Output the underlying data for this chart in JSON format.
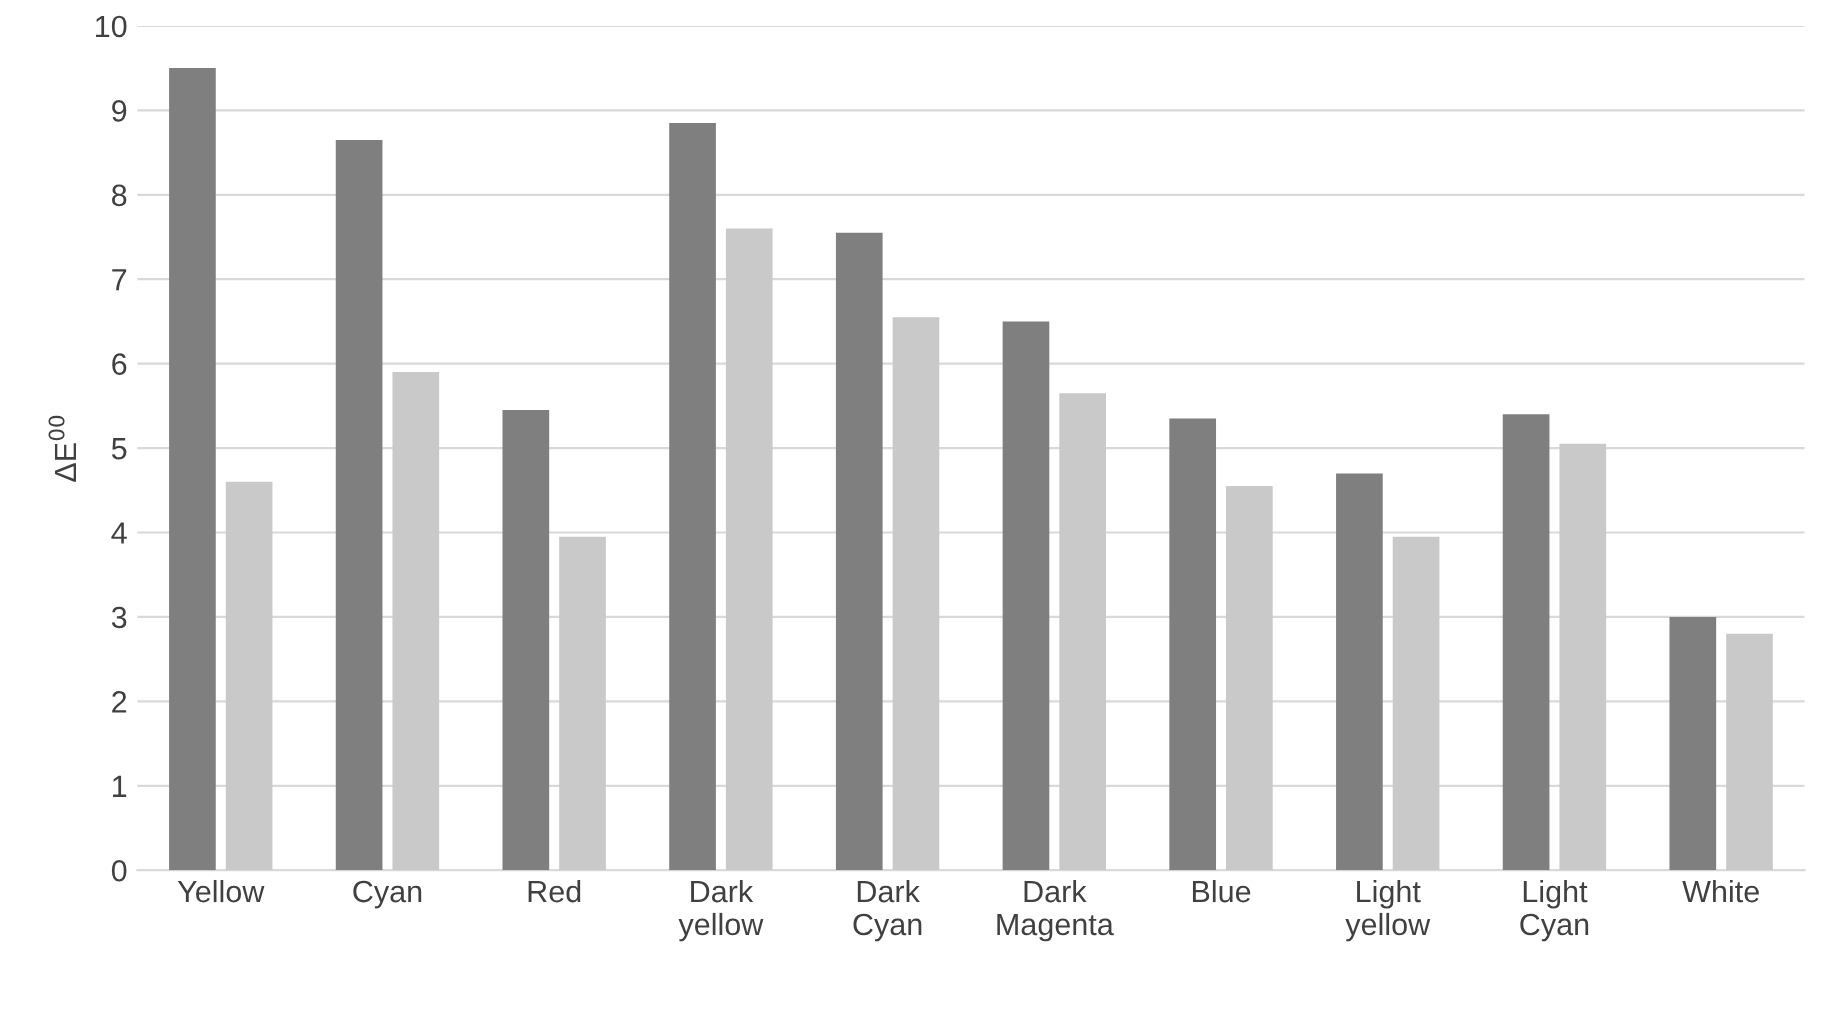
{
  "chart_data": {
    "type": "bar",
    "ylabel": "ΔE$^{00}$",
    "categories": [
      "Yellow",
      "Cyan",
      "Red",
      "Dark yellow",
      "Dark Cyan",
      "Dark Magenta",
      "Blue",
      "Light yellow",
      "Light Cyan",
      "White"
    ],
    "series": [
      {
        "color": "#7f7f7f",
        "values": [
          9.5,
          8.65,
          5.45,
          8.85,
          7.55,
          6.5,
          5.35,
          4.7,
          5.4,
          3.0
        ]
      },
      {
        "color": "#c9c9c9",
        "values": [
          4.6,
          5.9,
          3.95,
          7.6,
          6.55,
          5.65,
          4.55,
          3.95,
          5.05,
          2.8
        ]
      }
    ],
    "ylim": [
      0,
      10
    ],
    "yticks": [
      0,
      1,
      2,
      3,
      4,
      5,
      6,
      7,
      8,
      9,
      10
    ],
    "grid": "y"
  }
}
